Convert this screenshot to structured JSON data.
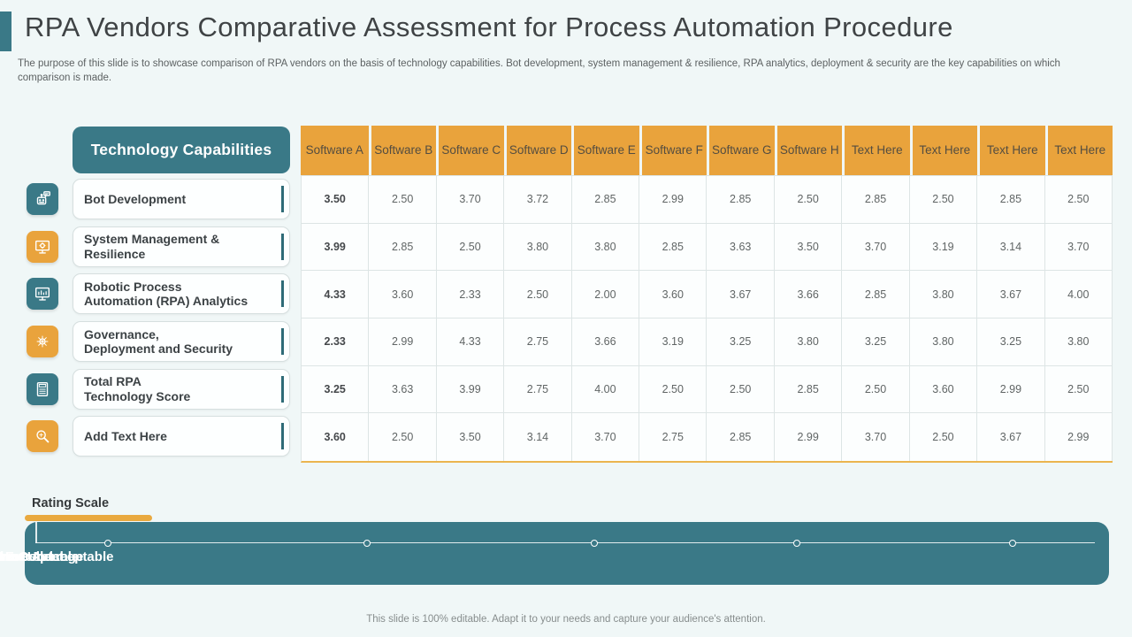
{
  "title": "RPA Vendors Comparative Assessment for Process Automation Procedure",
  "subtitle": "The purpose of this slide is to showcase comparison of RPA vendors on the basis of technology capabilities. Bot development, system management & resilience, RPA analytics, deployment & security are the key capabilities on which comparison is made.",
  "colors": {
    "teal": "#3A7987",
    "orange": "#E9A33C",
    "background": "#F0F7F7"
  },
  "panel": {
    "header": "Technology Capabilities",
    "items": [
      {
        "icon": "robot-icon",
        "label": "Bot Development"
      },
      {
        "icon": "monitor-gear-icon",
        "label": "System Management &\nResilience"
      },
      {
        "icon": "analytics-monitor-icon",
        "label": "Robotic Process\nAutomation (RPA) Analytics"
      },
      {
        "icon": "gear-network-icon",
        "label": "Governance,\nDeployment and Security"
      },
      {
        "icon": "calculator-icon",
        "label": "Total RPA\nTechnology Score"
      },
      {
        "icon": "search-icon",
        "label": "Add Text Here"
      }
    ]
  },
  "table": {
    "columns": [
      "Software A",
      "Software B",
      "Software C",
      "Software D",
      "Software E",
      "Software F",
      "Software G",
      "Software H",
      "Text Here",
      "Text Here",
      "Text Here",
      "Text Here"
    ],
    "rows": [
      {
        "capability": "Bot Development",
        "values": [
          "3.50",
          "2.50",
          "3.70",
          "3.72",
          "2.85",
          "2.99",
          "2.85",
          "2.50",
          "2.85",
          "2.50",
          "2.85",
          "2.50"
        ]
      },
      {
        "capability": "System Management & Resilience",
        "values": [
          "3.99",
          "2.85",
          "2.50",
          "3.80",
          "3.80",
          "2.85",
          "3.63",
          "3.50",
          "3.70",
          "3.19",
          "3.14",
          "3.70"
        ]
      },
      {
        "capability": "Robotic Process Automation (RPA) Analytics",
        "values": [
          "4.33",
          "3.60",
          "2.33",
          "2.50",
          "2.00",
          "3.60",
          "3.67",
          "3.66",
          "2.85",
          "3.80",
          "3.67",
          "4.00"
        ]
      },
      {
        "capability": "Governance, Deployment and Security",
        "values": [
          "2.33",
          "2.99",
          "4.33",
          "2.75",
          "3.66",
          "3.19",
          "3.25",
          "3.80",
          "3.25",
          "3.80",
          "3.25",
          "3.80"
        ]
      },
      {
        "capability": "Total RPA Technology Score",
        "values": [
          "3.25",
          "3.63",
          "3.99",
          "2.75",
          "4.00",
          "2.50",
          "2.50",
          "2.85",
          "2.50",
          "3.60",
          "2.99",
          "2.50"
        ]
      },
      {
        "capability": "Add Text Here",
        "values": [
          "3.60",
          "2.50",
          "3.50",
          "3.14",
          "3.70",
          "2.75",
          "2.85",
          "2.99",
          "3.70",
          "2.50",
          "3.67",
          "2.99"
        ]
      }
    ]
  },
  "rating_scale": {
    "title": "Rating Scale",
    "labels": [
      "1 – Unacceptable",
      "2 – Less Than Unacceptable",
      "3 – Good",
      "4 – Above Average",
      "5 - Excellent"
    ]
  },
  "footer": "This slide is 100% editable. Adapt it to your needs and capture your audience's attention."
}
